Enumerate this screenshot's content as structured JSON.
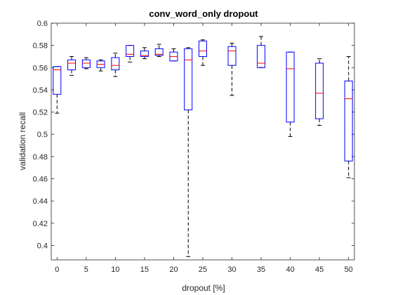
{
  "chart_data": {
    "type": "box",
    "title": "conv_word_only dropout",
    "xlabel": "dropout [%]",
    "ylabel": "validation recall",
    "xlim": [
      -1,
      51
    ],
    "ylim": [
      0.387,
      0.6
    ],
    "x_ticks": [
      0,
      5,
      10,
      15,
      20,
      25,
      30,
      35,
      40,
      45,
      50
    ],
    "y_ticks": [
      0.4,
      0.42,
      0.44,
      0.46,
      0.48,
      0.5,
      0.52,
      0.54,
      0.56,
      0.58,
      0.6
    ],
    "y_tick_labels": [
      "0.4",
      "0.42",
      "0.44",
      "0.46",
      "0.48",
      "0.5",
      "0.52",
      "0.54",
      "0.56",
      "0.58",
      "0.6"
    ],
    "colors": {
      "box": "#0000ff",
      "median": "#ff0000",
      "whisker": "#000000",
      "axis": "#262626"
    },
    "boxes": [
      {
        "x": 0,
        "whisker_low": 0.519,
        "q1": 0.536,
        "median": 0.558,
        "q3": 0.561,
        "whisker_high": 0.561
      },
      {
        "x": 2.5,
        "whisker_low": 0.553,
        "q1": 0.558,
        "median": 0.564,
        "q3": 0.567,
        "whisker_high": 0.57
      },
      {
        "x": 5,
        "whisker_low": 0.559,
        "q1": 0.56,
        "median": 0.564,
        "q3": 0.567,
        "whisker_high": 0.569
      },
      {
        "x": 7.5,
        "whisker_low": 0.557,
        "q1": 0.56,
        "median": 0.563,
        "q3": 0.566,
        "whisker_high": 0.567
      },
      {
        "x": 10,
        "whisker_low": 0.552,
        "q1": 0.558,
        "median": 0.562,
        "q3": 0.569,
        "whisker_high": 0.573
      },
      {
        "x": 12.5,
        "whisker_low": 0.565,
        "q1": 0.57,
        "median": 0.572,
        "q3": 0.58,
        "whisker_high": 0.58
      },
      {
        "x": 15,
        "whisker_low": 0.568,
        "q1": 0.57,
        "median": 0.571,
        "q3": 0.575,
        "whisker_high": 0.578
      },
      {
        "x": 17.5,
        "whisker_low": 0.57,
        "q1": 0.571,
        "median": 0.572,
        "q3": 0.577,
        "whisker_high": 0.581
      },
      {
        "x": 20,
        "whisker_low": 0.566,
        "q1": 0.566,
        "median": 0.57,
        "q3": 0.574,
        "whisker_high": 0.577
      },
      {
        "x": 22.5,
        "whisker_low": 0.39,
        "q1": 0.522,
        "median": 0.567,
        "q3": 0.577,
        "whisker_high": 0.578
      },
      {
        "x": 25,
        "whisker_low": 0.562,
        "q1": 0.57,
        "median": 0.575,
        "q3": 0.584,
        "whisker_high": 0.585
      },
      {
        "x": 30,
        "whisker_low": 0.535,
        "q1": 0.562,
        "median": 0.575,
        "q3": 0.579,
        "whisker_high": 0.582
      },
      {
        "x": 35,
        "whisker_low": 0.56,
        "q1": 0.56,
        "median": 0.564,
        "q3": 0.58,
        "whisker_high": 0.588
      },
      {
        "x": 40,
        "whisker_low": 0.498,
        "q1": 0.511,
        "median": 0.559,
        "q3": 0.574,
        "whisker_high": 0.574
      },
      {
        "x": 45,
        "whisker_low": 0.508,
        "q1": 0.514,
        "median": 0.537,
        "q3": 0.564,
        "whisker_high": 0.568
      },
      {
        "x": 50,
        "whisker_low": 0.461,
        "q1": 0.476,
        "median": 0.532,
        "q3": 0.548,
        "whisker_high": 0.57
      }
    ]
  }
}
